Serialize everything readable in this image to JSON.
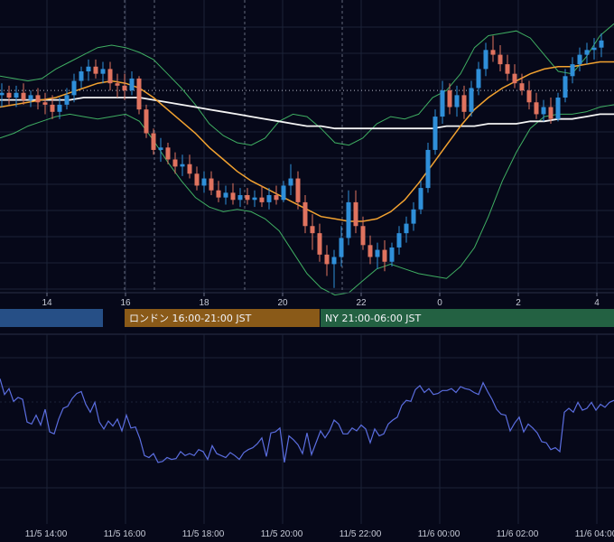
{
  "colors": {
    "background": "#060819",
    "grid": "#1c2238",
    "up": "#2f8fd9",
    "down": "#e0735f",
    "bollinger": "#3fae62",
    "ma_orange": "#f2a230",
    "ma_white": "#f4f4f4",
    "oscillator": "#5b6ee0",
    "session_tokyo": "#264f86",
    "session_london": "#8a5a18",
    "session_ny": "#236142"
  },
  "chart_data": [
    {
      "type": "candlestick",
      "x_ticks": [
        "14",
        "16",
        "18",
        "20",
        "22",
        "0",
        "2",
        "4"
      ],
      "grid": true,
      "series": [
        {
          "type": "ohlc",
          "values": [
            [
              100.4,
              100.9,
              99.9,
              100.5
            ],
            [
              100.5,
              100.8,
              100.0,
              100.3
            ],
            [
              100.3,
              100.8,
              99.9,
              100.5
            ],
            [
              100.5,
              100.9,
              100.0,
              100.2
            ],
            [
              100.2,
              100.6,
              99.9,
              100.4
            ],
            [
              100.4,
              100.7,
              99.8,
              100.1
            ],
            [
              100.1,
              100.5,
              99.6,
              100.0
            ],
            [
              100.0,
              100.4,
              99.4,
              99.7
            ],
            [
              99.7,
              100.3,
              99.4,
              100.0
            ],
            [
              100.0,
              100.7,
              99.8,
              100.4
            ],
            [
              100.4,
              101.3,
              100.1,
              101.0
            ],
            [
              101.0,
              101.6,
              100.7,
              101.4
            ],
            [
              101.4,
              101.9,
              101.0,
              101.6
            ],
            [
              101.6,
              101.9,
              101.1,
              101.3
            ],
            [
              101.3,
              101.8,
              100.9,
              101.5
            ],
            [
              101.5,
              101.8,
              100.6,
              100.9
            ],
            [
              100.9,
              101.3,
              100.3,
              100.8
            ],
            [
              100.8,
              101.3,
              100.2,
              100.6
            ],
            [
              100.6,
              101.4,
              100.4,
              101.1
            ],
            [
              101.1,
              101.2,
              99.6,
              99.8
            ],
            [
              99.8,
              100.0,
              98.6,
              98.8
            ],
            [
              98.8,
              99.0,
              97.9,
              98.1
            ],
            [
              98.1,
              98.6,
              97.6,
              98.2
            ],
            [
              98.2,
              98.4,
              97.5,
              97.7
            ],
            [
              97.7,
              98.0,
              97.1,
              97.4
            ],
            [
              97.4,
              97.9,
              97.0,
              97.5
            ],
            [
              97.5,
              97.9,
              96.9,
              97.1
            ],
            [
              97.1,
              97.4,
              96.4,
              96.6
            ],
            [
              96.6,
              97.2,
              96.3,
              96.9
            ],
            [
              96.9,
              97.2,
              96.2,
              96.4
            ],
            [
              96.4,
              96.8,
              95.9,
              96.1
            ],
            [
              96.1,
              96.6,
              95.8,
              96.3
            ],
            [
              96.3,
              96.7,
              95.8,
              96.0
            ],
            [
              96.0,
              96.5,
              95.7,
              96.2
            ],
            [
              96.2,
              96.5,
              95.8,
              96.0
            ],
            [
              96.0,
              96.4,
              95.7,
              96.1
            ],
            [
              96.1,
              96.6,
              95.7,
              95.9
            ],
            [
              95.9,
              96.5,
              95.6,
              96.2
            ],
            [
              96.2,
              96.6,
              95.8,
              96.0
            ],
            [
              96.0,
              96.8,
              95.9,
              96.6
            ],
            [
              96.6,
              97.5,
              96.2,
              96.9
            ],
            [
              96.9,
              97.2,
              95.6,
              95.9
            ],
            [
              95.9,
              96.2,
              94.6,
              94.9
            ],
            [
              94.9,
              95.4,
              93.9,
              94.6
            ],
            [
              94.6,
              95.0,
              93.4,
              93.7
            ],
            [
              93.7,
              94.1,
              92.8,
              93.3
            ],
            [
              93.3,
              93.9,
              92.3,
              93.6
            ],
            [
              93.6,
              94.9,
              93.2,
              94.4
            ],
            [
              94.4,
              96.4,
              94.1,
              95.9
            ],
            [
              95.9,
              96.4,
              94.6,
              94.9
            ],
            [
              94.9,
              95.3,
              93.9,
              94.1
            ],
            [
              94.1,
              94.5,
              93.3,
              93.6
            ],
            [
              93.6,
              94.2,
              93.1,
              93.9
            ],
            [
              93.9,
              94.3,
              93.0,
              93.4
            ],
            [
              93.4,
              94.2,
              93.2,
              94.0
            ],
            [
              94.0,
              94.9,
              93.7,
              94.6
            ],
            [
              94.6,
              95.3,
              94.2,
              95.0
            ],
            [
              95.0,
              95.9,
              94.7,
              95.6
            ],
            [
              95.6,
              96.8,
              95.4,
              96.5
            ],
            [
              96.5,
              98.4,
              96.3,
              98.1
            ],
            [
              98.1,
              99.8,
              97.9,
              99.5
            ],
            [
              99.5,
              101.0,
              99.2,
              100.6
            ],
            [
              100.6,
              100.9,
              99.6,
              99.9
            ],
            [
              99.9,
              100.8,
              99.5,
              100.4
            ],
            [
              100.4,
              100.8,
              99.4,
              99.7
            ],
            [
              99.7,
              101.0,
              99.5,
              100.7
            ],
            [
              100.7,
              101.8,
              100.4,
              101.5
            ],
            [
              101.5,
              102.6,
              101.2,
              102.3
            ],
            [
              102.3,
              102.9,
              101.8,
              102.1
            ],
            [
              102.1,
              102.5,
              101.4,
              101.7
            ],
            [
              101.7,
              102.1,
              101.0,
              101.3
            ],
            [
              101.3,
              101.7,
              100.7,
              100.9
            ],
            [
              100.9,
              101.3,
              100.4,
              100.6
            ],
            [
              100.6,
              101.0,
              99.8,
              100.1
            ],
            [
              100.1,
              100.5,
              99.4,
              99.6
            ],
            [
              99.6,
              100.2,
              99.3,
              99.9
            ],
            [
              99.9,
              100.3,
              99.2,
              99.4
            ],
            [
              99.4,
              100.5,
              99.3,
              100.3
            ],
            [
              100.3,
              101.5,
              100.1,
              101.2
            ],
            [
              101.2,
              102.0,
              100.9,
              101.7
            ],
            [
              101.7,
              102.4,
              101.4,
              102.1
            ],
            [
              102.1,
              102.6,
              101.7,
              102.3
            ],
            [
              102.3,
              102.8,
              101.9,
              102.4
            ],
            [
              102.4,
              103.0,
              102.0,
              102.7
            ]
          ]
        },
        {
          "type": "line",
          "role": "bollinger_upper",
          "values": [
            101.2,
            101.1,
            101.0,
            101.1,
            101.5,
            101.8,
            102.1,
            102.4,
            102.5,
            102.4,
            102.2,
            101.9,
            101.3,
            100.7,
            100.0,
            99.2,
            98.7,
            98.4,
            98.3,
            98.6,
            99.3,
            99.6,
            99.5,
            99.0,
            98.4,
            98.3,
            98.6,
            99.2,
            99.5,
            99.4,
            99.6,
            100.3,
            100.6,
            101.3,
            102.4,
            102.9,
            103.0,
            103.1,
            102.8,
            102.1,
            101.4,
            101.3,
            102.0,
            102.9,
            103.4
          ]
        },
        {
          "type": "line",
          "role": "bollinger_lower",
          "values": [
            98.6,
            98.8,
            99.1,
            99.3,
            99.5,
            99.6,
            99.5,
            99.4,
            99.5,
            99.6,
            99.3,
            98.5,
            97.6,
            96.8,
            96.1,
            95.7,
            95.5,
            95.6,
            95.5,
            95.2,
            94.7,
            93.8,
            92.9,
            92.3,
            92.0,
            92.1,
            92.6,
            93.1,
            93.3,
            93.1,
            92.9,
            92.8,
            92.7,
            93.2,
            94.0,
            95.3,
            96.8,
            98.0,
            99.0,
            99.5,
            99.6,
            99.6,
            99.7,
            99.9,
            100.0
          ]
        },
        {
          "type": "line",
          "role": "ma_orange",
          "values": [
            99.9,
            100.0,
            100.1,
            100.2,
            100.3,
            100.5,
            100.7,
            100.9,
            101.0,
            100.9,
            100.7,
            100.3,
            99.8,
            99.3,
            98.8,
            98.2,
            97.7,
            97.2,
            96.8,
            96.5,
            96.2,
            95.9,
            95.6,
            95.3,
            95.2,
            95.1,
            95.1,
            95.2,
            95.5,
            96.0,
            96.7,
            97.5,
            98.3,
            99.1,
            99.8,
            100.3,
            100.7,
            101.0,
            101.3,
            101.5,
            101.6,
            101.6,
            101.7,
            101.8,
            101.8
          ]
        },
        {
          "type": "line",
          "role": "ma_white",
          "values": [
            100.2,
            100.2,
            100.2,
            100.2,
            100.2,
            100.2,
            100.3,
            100.3,
            100.3,
            100.3,
            100.3,
            100.2,
            100.1,
            100.0,
            99.9,
            99.8,
            99.7,
            99.6,
            99.5,
            99.4,
            99.3,
            99.2,
            99.1,
            99.1,
            99.0,
            99.0,
            99.0,
            99.0,
            99.0,
            99.0,
            99.0,
            99.0,
            99.1,
            99.1,
            99.1,
            99.2,
            99.2,
            99.2,
            99.3,
            99.3,
            99.4,
            99.4,
            99.5,
            99.6,
            99.6
          ]
        }
      ],
      "reference_line": 100.6
    },
    {
      "type": "line",
      "x_ticks": [
        "11/5 14:00",
        "11/5 16:00",
        "11/5 18:00",
        "11/5 20:00",
        "11/5 22:00",
        "11/6 00:00",
        "11/6 02:00",
        "11/6 04:00"
      ],
      "grid": true,
      "series": [
        {
          "values": [
            86,
            70,
            76,
            63,
            67,
            65,
            42,
            40,
            49,
            39,
            55,
            32,
            30,
            45,
            56,
            58,
            66,
            71,
            73,
            60,
            52,
            62,
            42,
            35,
            43,
            38,
            45,
            33,
            49,
            36,
            37,
            25,
            8,
            6,
            10,
            1,
            2,
            6,
            4,
            5,
            12,
            8,
            10,
            8,
            14,
            12,
            4,
            18,
            10,
            8,
            6,
            11,
            8,
            4,
            11,
            14,
            16,
            20,
            26,
            7,
            31,
            32,
            36,
            1,
            28,
            24,
            19,
            10,
            31,
            9,
            21,
            33,
            26,
            33,
            44,
            40,
            30,
            30,
            36,
            33,
            39,
            35,
            21,
            35,
            28,
            30,
            40,
            44,
            47,
            59,
            64,
            63,
            75,
            79,
            72,
            76,
            70,
            71,
            74,
            74,
            76,
            72,
            78,
            76,
            75,
            72,
            70,
            82,
            73,
            65,
            55,
            50,
            49,
            33,
            41,
            47,
            32,
            40,
            36,
            31,
            22,
            21,
            14,
            16,
            12,
            52,
            56,
            52,
            62,
            54,
            56,
            62,
            54,
            60,
            57,
            62,
            64
          ]
        }
      ]
    }
  ],
  "sessions": [
    {
      "label": "",
      "color": "#264f86"
    },
    {
      "label": "ロンドン 16:00-21:00 JST",
      "color": "#8a5a18"
    },
    {
      "label": "NY 21:00-06:00 JST",
      "color": "#236142"
    }
  ]
}
